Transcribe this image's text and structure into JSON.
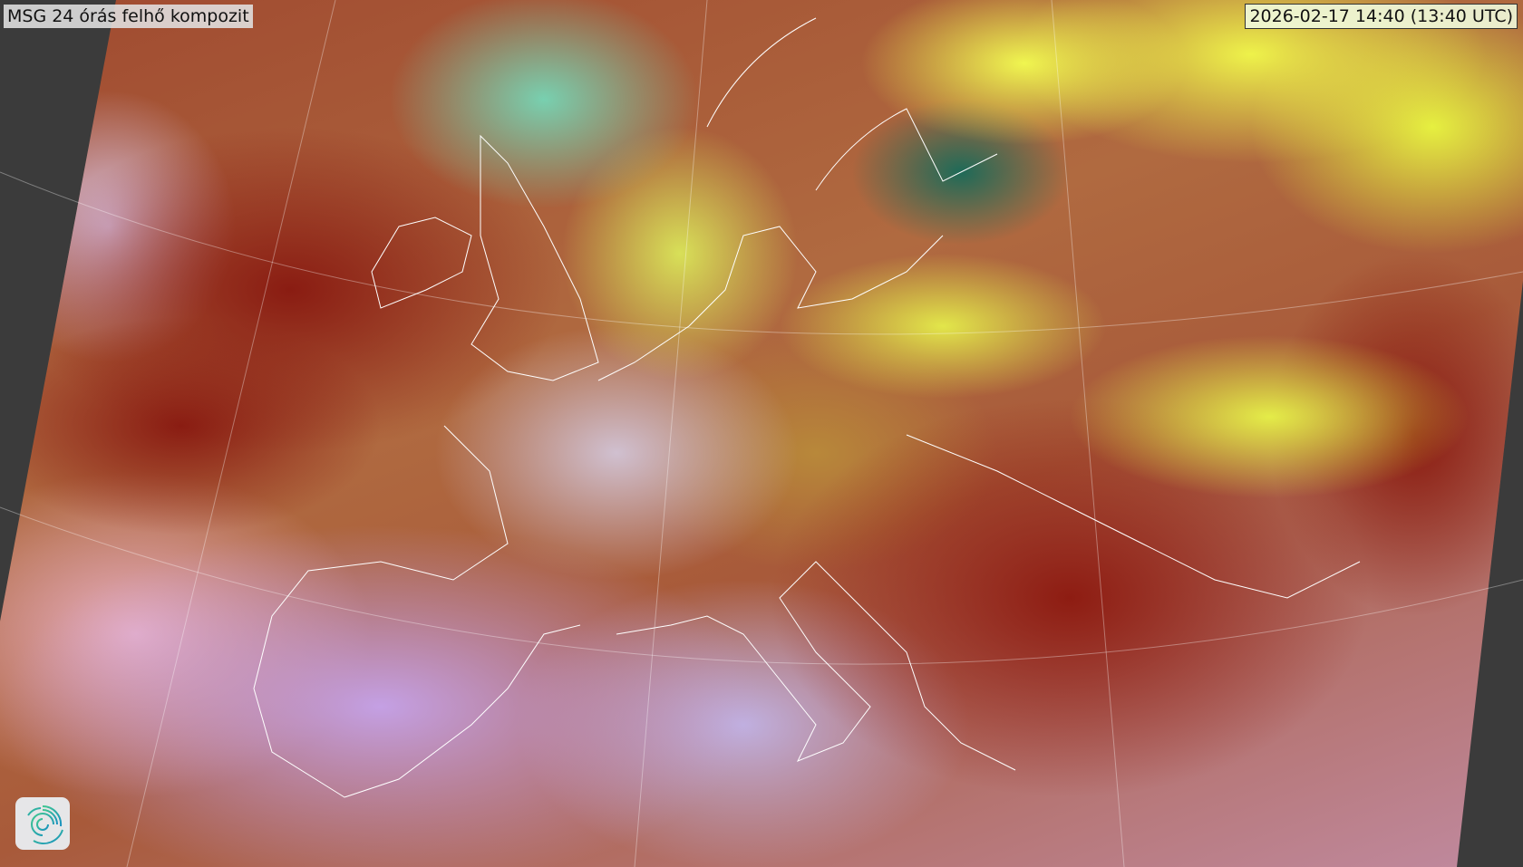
{
  "title": "MSG 24 órás felhő kompozit",
  "timestamp": "2026-02-17 14:40 (13:40 UTC)",
  "logo": {
    "icon": "spiral-logo-icon",
    "color": "#20a8a0"
  },
  "colors": {
    "background": "#3b3b3b",
    "coastlines": "#ffffff"
  }
}
